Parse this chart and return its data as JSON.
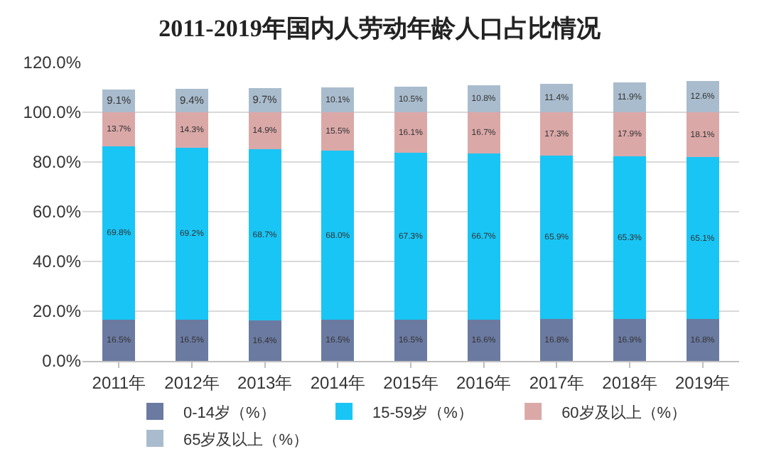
{
  "chart_data": {
    "type": "bar",
    "title": "2011-2019年国内人劳动年龄人口占比情况",
    "stacked": true,
    "grid": "y",
    "legend": "bottom",
    "categories": [
      "2011年",
      "2012年",
      "2013年",
      "2014年",
      "2015年",
      "2016年",
      "2017年",
      "2018年",
      "2019年"
    ],
    "ylim": [
      0,
      120
    ],
    "yticks": [
      {
        "value": 0,
        "label": "0.0%"
      },
      {
        "value": 20,
        "label": "20.0%"
      },
      {
        "value": 40,
        "label": "40.0%"
      },
      {
        "value": 60,
        "label": "60.0%"
      },
      {
        "value": 80,
        "label": "80.0%"
      },
      {
        "value": 100,
        "label": "100.0%"
      },
      {
        "value": 120,
        "label": "120.0%"
      }
    ],
    "series": [
      {
        "name": "0-14岁（%）",
        "color": "#6b7aa1",
        "values": [
          16.5,
          16.5,
          16.4,
          16.5,
          16.5,
          16.6,
          16.8,
          16.9,
          16.8
        ],
        "value_labels": [
          "16.5%",
          "16.5%",
          "16.4%",
          "16.5%",
          "16.5%",
          "16.6%",
          "16.8%",
          "16.9%",
          "16.8%"
        ]
      },
      {
        "name": "15-59岁（%）",
        "color": "#19c5f5",
        "values": [
          69.8,
          69.2,
          68.7,
          68.0,
          67.3,
          66.7,
          65.9,
          65.3,
          65.1
        ],
        "value_labels": [
          "69.8%",
          "69.2%",
          "68.7%",
          "68.0%",
          "67.3%",
          "66.7%",
          "65.9%",
          "65.3%",
          "65.1%"
        ]
      },
      {
        "name": "60岁及以上（%）",
        "color": "#dba8a8",
        "values": [
          13.7,
          14.3,
          14.9,
          15.5,
          16.1,
          16.7,
          17.3,
          17.9,
          18.1
        ],
        "value_labels": [
          "13.7%",
          "14.3%",
          "14.9%",
          "15.5%",
          "16.1%",
          "16.7%",
          "17.3%",
          "17.9%",
          "18.1%"
        ]
      },
      {
        "name": "65岁及以上（%）",
        "color": "#a9bccd",
        "values": [
          9.1,
          9.4,
          9.7,
          10.1,
          10.5,
          10.8,
          11.4,
          11.9,
          12.6
        ],
        "value_labels": [
          "9.1%",
          "9.4%",
          "9.7%",
          "10.1%",
          "10.5%",
          "10.8%",
          "11.4%",
          "11.9%",
          "12.6%"
        ]
      }
    ]
  }
}
